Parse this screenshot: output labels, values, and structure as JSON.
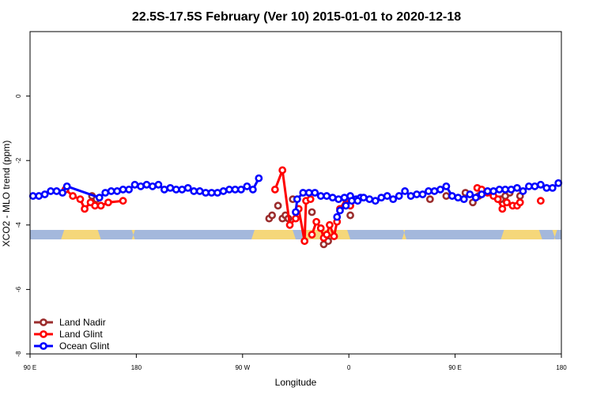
{
  "chart_data": {
    "type": "line",
    "title": "22.5S-17.5S February (Ver 10)   2015-01-01 to 2020-12-18",
    "xlabel": "Longitude",
    "ylabel": "XCO2 - MLO trend (ppm)",
    "xlim": [
      -90,
      270
    ],
    "ylim": [
      -8,
      2
    ],
    "x_ticks": [
      {
        "value": -90,
        "label": "90 E"
      },
      {
        "value": -18,
        "label": "180"
      },
      {
        "value": 54,
        "label": "90 W"
      },
      {
        "value": 126,
        "label": "0"
      },
      {
        "value": 198,
        "label": "90 E"
      },
      {
        "value": 270,
        "label": "180"
      }
    ],
    "y_ticks": [
      {
        "value": 0,
        "label": "0"
      },
      {
        "value": -2,
        "label": "-2"
      },
      {
        "value": -4,
        "label": "-4"
      },
      {
        "value": -6,
        "label": "-6"
      },
      {
        "value": -8,
        "label": "-8"
      }
    ],
    "legend_position": "bottom-left",
    "land_mask": {
      "y_center": -4.3,
      "ocean_color": "#a4b8dc",
      "land_color": "#f5d77a",
      "land_segments": [
        [
          -69,
          -42
        ],
        [
          -21,
          -19
        ],
        [
          60,
          90
        ],
        [
          94,
          127
        ],
        [
          162,
          165
        ],
        [
          229,
          257
        ],
        [
          265,
          266
        ]
      ]
    },
    "series": [
      {
        "name": "Land Nadir",
        "color": "#9b2d2d",
        "points": [
          [
            -66,
            -2.9
          ],
          [
            -48,
            -3.1
          ],
          [
            -45,
            -3.2
          ],
          [
            72,
            -3.8
          ],
          [
            74,
            -3.7
          ],
          [
            78,
            -3.4
          ],
          [
            81,
            -3.8
          ],
          [
            83,
            -3.7
          ],
          [
            85,
            -3.8
          ],
          [
            88,
            -3.2
          ],
          [
            101,
            -3.6
          ],
          [
            109,
            -4.6
          ],
          [
            112,
            -4.5
          ],
          [
            125,
            -3.2
          ],
          [
            127,
            -3.7
          ],
          [
            181,
            -3.2
          ],
          [
            192,
            -3.1
          ],
          [
            205,
            -3.0
          ],
          [
            210,
            -3.3
          ],
          [
            214,
            -3.1
          ],
          [
            229,
            -3.2
          ],
          [
            232,
            -3.1
          ],
          [
            235,
            -3.0
          ],
          [
            242,
            -3.1
          ]
        ]
      },
      {
        "name": "Land Glint",
        "color": "#ff0000",
        "points": [
          [
            [
              -66,
              -2.9
            ],
            [
              -61,
              -3.1
            ],
            [
              -56,
              -3.2
            ],
            [
              -53,
              -3.5
            ],
            [
              -49,
              -3.3
            ],
            [
              -46,
              -3.4
            ],
            [
              -42,
              -3.4
            ],
            [
              -37,
              -3.3
            ],
            [
              -27,
              -3.25
            ]
          ],
          [
            [
              76,
              -2.9
            ],
            [
              81,
              -2.3
            ],
            [
              86,
              -4.0
            ],
            [
              90,
              -3.8
            ],
            [
              92,
              -3.5
            ],
            [
              96,
              -4.5
            ],
            [
              97,
              -3.25
            ],
            [
              100,
              -3.2
            ]
          ],
          [
            [
              101,
              -4.3
            ],
            [
              104,
              -3.9
            ],
            [
              107,
              -4.1
            ],
            [
              109,
              -4.4
            ],
            [
              111,
              -4.3
            ],
            [
              113,
              -4.0
            ],
            [
              116,
              -4.35
            ],
            [
              118,
              -3.9
            ],
            [
              120,
              -3.5
            ],
            [
              124,
              -3.2
            ],
            [
              127,
              -3.4
            ]
          ],
          [
            [
              213,
              -2.85
            ],
            [
              216,
              -2.9
            ],
            [
              220,
              -3.0
            ],
            [
              224,
              -3.1
            ],
            [
              227,
              -3.2
            ],
            [
              230,
              -3.5
            ],
            [
              233,
              -3.3
            ],
            [
              237,
              -3.4
            ],
            [
              240,
              -3.4
            ],
            [
              242,
              -3.3
            ]
          ],
          [
            [
              256,
              -3.25
            ]
          ]
        ]
      },
      {
        "name": "Ocean Glint",
        "color": "#0000ff",
        "points": [
          [
            [
              -88,
              -3.1
            ],
            [
              -84,
              -3.1
            ],
            [
              -80,
              -3.05
            ],
            [
              -76,
              -2.95
            ],
            [
              -72,
              -2.95
            ],
            [
              -68,
              -3.0
            ],
            [
              -65,
              -2.8
            ],
            [
              -43,
              -3.15
            ],
            [
              -39,
              -3.0
            ],
            [
              -35,
              -2.95
            ],
            [
              -31,
              -2.95
            ],
            [
              -27,
              -2.9
            ],
            [
              -23,
              -2.9
            ],
            [
              -19,
              -2.75
            ],
            [
              -15,
              -2.8
            ],
            [
              -11,
              -2.75
            ],
            [
              -7,
              -2.8
            ],
            [
              -3,
              -2.75
            ],
            [
              1,
              -2.9
            ],
            [
              5,
              -2.85
            ],
            [
              9,
              -2.9
            ],
            [
              13,
              -2.9
            ],
            [
              17,
              -2.85
            ],
            [
              21,
              -2.95
            ],
            [
              25,
              -2.95
            ],
            [
              29,
              -3.0
            ],
            [
              33,
              -3.0
            ],
            [
              37,
              -3.0
            ],
            [
              41,
              -2.95
            ],
            [
              45,
              -2.9
            ],
            [
              49,
              -2.9
            ],
            [
              53,
              -2.9
            ],
            [
              57,
              -2.8
            ],
            [
              61,
              -2.9
            ],
            [
              65,
              -2.55
            ]
          ],
          [
            [
              90,
              -3.6
            ],
            [
              91,
              -3.2
            ],
            [
              95,
              -3.0
            ],
            [
              99,
              -3.0
            ],
            [
              103,
              -3.0
            ],
            [
              107,
              -3.1
            ],
            [
              111,
              -3.1
            ],
            [
              115,
              -3.15
            ],
            [
              119,
              -3.2
            ],
            [
              123,
              -3.15
            ],
            [
              127,
              -3.1
            ],
            [
              131,
              -3.2
            ],
            [
              134,
              -3.15
            ]
          ],
          [
            [
              118,
              -3.75
            ],
            [
              120,
              -3.55
            ],
            [
              124,
              -3.4
            ],
            [
              128,
              -3.25
            ],
            [
              132,
              -3.25
            ],
            [
              136,
              -3.15
            ],
            [
              140,
              -3.2
            ],
            [
              144,
              -3.25
            ],
            [
              148,
              -3.15
            ],
            [
              152,
              -3.1
            ],
            [
              156,
              -3.2
            ],
            [
              160,
              -3.1
            ],
            [
              164,
              -2.95
            ],
            [
              168,
              -3.1
            ],
            [
              172,
              -3.05
            ],
            [
              176,
              -3.05
            ],
            [
              180,
              -2.95
            ],
            [
              184,
              -2.95
            ],
            [
              188,
              -2.9
            ],
            [
              192,
              -2.8
            ],
            [
              196,
              -3.1
            ],
            [
              200,
              -3.15
            ],
            [
              204,
              -3.2
            ],
            [
              208,
              -3.05
            ],
            [
              212,
              -3.15
            ],
            [
              216,
              -3.05
            ],
            [
              220,
              -2.95
            ],
            [
              224,
              -2.95
            ],
            [
              228,
              -2.9
            ],
            [
              232,
              -2.9
            ],
            [
              236,
              -2.9
            ],
            [
              240,
              -2.85
            ],
            [
              244,
              -2.95
            ],
            [
              248,
              -2.8
            ],
            [
              252,
              -2.8
            ],
            [
              256,
              -2.75
            ],
            [
              260,
              -2.85
            ],
            [
              264,
              -2.85
            ],
            [
              268,
              -2.7
            ]
          ]
        ]
      }
    ]
  }
}
